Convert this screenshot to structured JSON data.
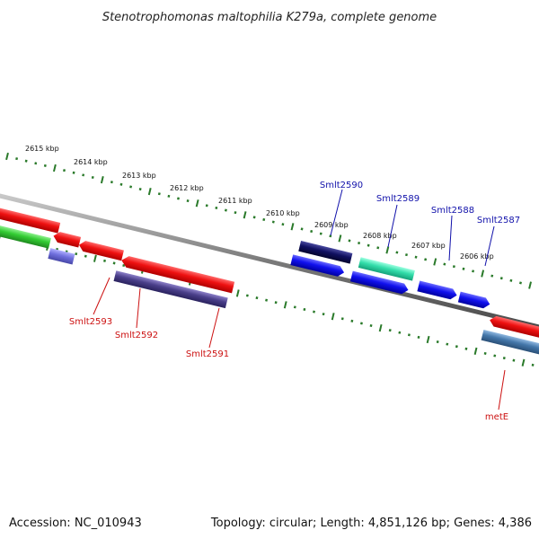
{
  "title": "Stenotrophomonas maltophilia K279a, complete genome",
  "footer": {
    "accession": "Accession: NC_010943",
    "summary": "Topology: circular; Length: 4,851,126 bp; Genes: 4,386"
  },
  "ruler": {
    "ticks": [
      "2615 kbp",
      "2614 kbp",
      "2613 kbp",
      "2612 kbp",
      "2611 kbp",
      "2610 kbp",
      "2609 kbp",
      "2608 kbp",
      "2607 kbp",
      "2606 kbp"
    ]
  },
  "genes": {
    "forward": [
      {
        "name": "Smlt2590",
        "color": "#1010aa"
      },
      {
        "name": "Smlt2589",
        "color": "#1010aa"
      },
      {
        "name": "Smlt2588",
        "color": "#1010aa"
      },
      {
        "name": "Smlt2587",
        "color": "#1010aa"
      }
    ],
    "reverse": [
      {
        "name": "Smlt2593",
        "color": "#cc1111"
      },
      {
        "name": "Smlt2592",
        "color": "#cc1111"
      },
      {
        "name": "Smlt2591",
        "color": "#cc1111"
      },
      {
        "name": "metE",
        "color": "#cc1111"
      }
    ]
  },
  "colors": {
    "backbone": "#8a8a8a",
    "ruler": "#2a7a2a",
    "cds_reverse": "#ee1111",
    "cds_forward": "#1111ee",
    "accent_green": "#33cc33",
    "accent_teal": "#33ddaa",
    "accent_purple": "#4a3f8a",
    "accent_navy": "#101060",
    "accent_steel": "#4477aa",
    "accent_lavender": "#7070dd"
  }
}
